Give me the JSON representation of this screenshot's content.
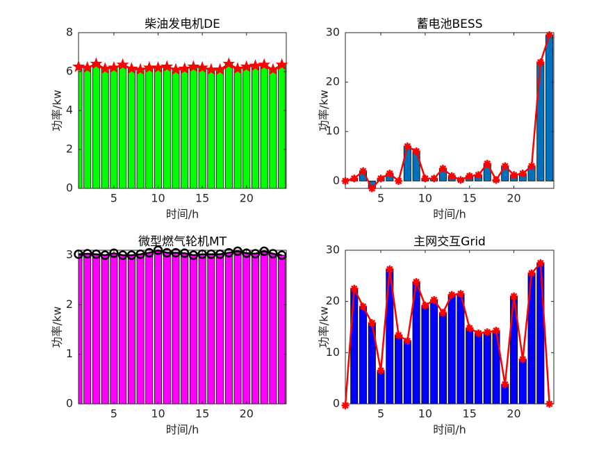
{
  "chart_data": [
    {
      "type": "bar",
      "title": "柴油发电机DE",
      "xlabel": "时间/h",
      "ylabel": "功率/kw",
      "x": [
        1,
        2,
        3,
        4,
        5,
        6,
        7,
        8,
        9,
        10,
        11,
        12,
        13,
        14,
        15,
        16,
        17,
        18,
        19,
        20,
        21,
        22,
        23,
        24
      ],
      "values": [
        6.25,
        6.2,
        6.4,
        6.15,
        6.2,
        6.35,
        6.15,
        6.1,
        6.2,
        6.2,
        6.25,
        6.1,
        6.15,
        6.25,
        6.2,
        6.1,
        6.1,
        6.4,
        6.15,
        6.25,
        6.3,
        6.35,
        6.1,
        6.35
      ],
      "color": "#00ff00",
      "marker": "star",
      "marker_color": "#ff0000",
      "line_color": "#ff0000",
      "xlim": [
        1,
        24.5
      ],
      "xticks": [
        5,
        10,
        15,
        20
      ],
      "ylim": [
        0,
        8
      ],
      "yticks": [
        0,
        2,
        4,
        6,
        8
      ]
    },
    {
      "type": "bar",
      "title": "蓄电池BESS",
      "xlabel": "时间/h",
      "ylabel": "功率/kw",
      "x": [
        1,
        2,
        3,
        4,
        5,
        6,
        7,
        8,
        9,
        10,
        11,
        12,
        13,
        14,
        15,
        16,
        17,
        18,
        19,
        20,
        21,
        22,
        23,
        24
      ],
      "values": [
        0,
        0.5,
        2,
        -1.5,
        0.5,
        1.5,
        0,
        7,
        6,
        0.5,
        0.5,
        2.5,
        1,
        0.2,
        1,
        1.2,
        3.5,
        0.2,
        3,
        1.2,
        1.5,
        3,
        24,
        29.5
      ],
      "color": "#0072bd",
      "marker": "asterisk",
      "marker_color": "#ff0000",
      "line_color": "#ff0000",
      "xlim": [
        1,
        24.5
      ],
      "xticks": [
        5,
        10,
        15,
        20
      ],
      "ylim": [
        -1.5,
        30
      ],
      "yticks": [
        0,
        10,
        20,
        30
      ]
    },
    {
      "type": "bar",
      "title": "微型燃气轮机MT",
      "xlabel": "时间/h",
      "ylabel": "功率/kw",
      "x": [
        1,
        2,
        3,
        4,
        5,
        6,
        7,
        8,
        9,
        10,
        11,
        12,
        13,
        14,
        15,
        16,
        17,
        18,
        19,
        20,
        21,
        22,
        23,
        24
      ],
      "values": [
        3.02,
        3.03,
        3.02,
        3.0,
        3.04,
        3.0,
        3.0,
        3.02,
        3.05,
        3.1,
        3.05,
        3.05,
        3.04,
        3.0,
        3.02,
        3.02,
        3.02,
        3.05,
        3.08,
        3.04,
        3.03,
        3.08,
        3.03,
        3.0
      ],
      "color": "#ff00ff",
      "marker": "circle",
      "marker_color": "#000000",
      "line_color": "#000000",
      "xlim": [
        1,
        24.5
      ],
      "xticks": [
        5,
        10,
        15,
        20
      ],
      "ylim": [
        0,
        3.1
      ],
      "yticks": [
        0,
        1,
        2,
        3
      ]
    },
    {
      "type": "bar",
      "title": "主网交互Grid",
      "xlabel": "时间/h",
      "ylabel": "功率/kw",
      "x": [
        1,
        2,
        3,
        4,
        5,
        6,
        7,
        8,
        9,
        10,
        11,
        12,
        13,
        14,
        15,
        16,
        17,
        18,
        19,
        20,
        21,
        22,
        23,
        24
      ],
      "values": [
        -0.3,
        22.5,
        19,
        15.8,
        6.5,
        26.3,
        13.4,
        12.3,
        23.8,
        19.2,
        20.3,
        17.8,
        21.3,
        21.5,
        14.8,
        13.8,
        14,
        14.3,
        3.8,
        21,
        8.7,
        25.5,
        27.5,
        0
      ],
      "color": "#0000ff",
      "marker": "asterisk",
      "marker_color": "#ff0000",
      "line_color": "#ff0000",
      "xlim": [
        1,
        24.5
      ],
      "xticks": [
        5,
        10,
        15,
        20
      ],
      "ylim": [
        0,
        30
      ],
      "yticks": [
        0,
        10,
        20,
        30
      ]
    }
  ]
}
